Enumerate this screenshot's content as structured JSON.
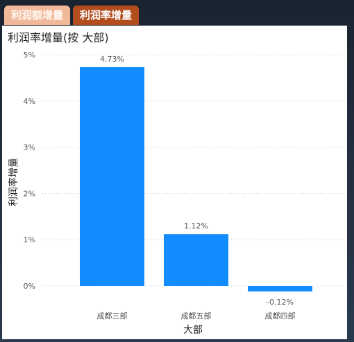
{
  "tabs": [
    {
      "label": "利润额增量",
      "active": false
    },
    {
      "label": "利润率增量",
      "active": true
    }
  ],
  "colors": {
    "bar": "#118dff",
    "tab_active": "#b34d1e",
    "tab_inactive": "#f1b99a"
  },
  "chart_data": {
    "type": "bar",
    "title": "利润率增量(按 大部)",
    "xlabel": "大部",
    "ylabel": "利润率增量",
    "categories": [
      "成都三部",
      "成都五部",
      "成都四部"
    ],
    "values": [
      4.73,
      1.12,
      -0.12
    ],
    "value_labels": [
      "4.73%",
      "1.12%",
      "-0.12%"
    ],
    "yticks": [
      0,
      1,
      2,
      3,
      4,
      5
    ],
    "ytick_labels": [
      "0%",
      "1%",
      "2%",
      "3%",
      "4%",
      "5%"
    ],
    "ylim": [
      0,
      5
    ],
    "grid": true
  }
}
